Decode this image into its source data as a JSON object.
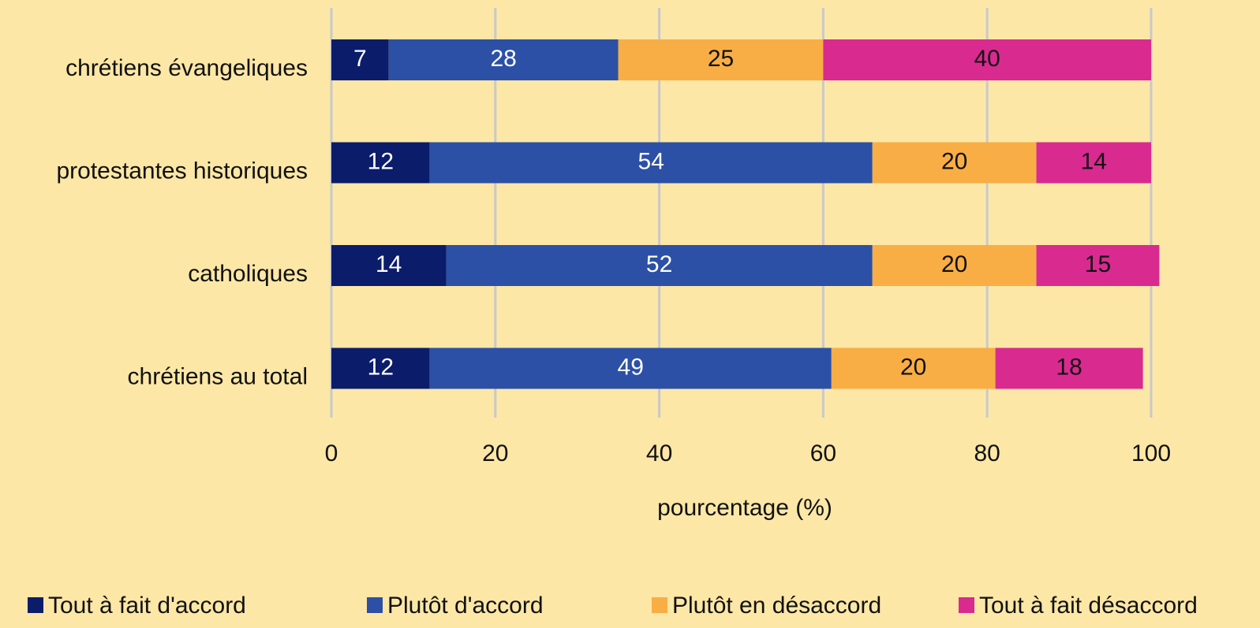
{
  "chart_data": {
    "type": "stacked-bar-horizontal",
    "categories": [
      "chrétiens évangeliques",
      "protestantes historiques",
      "catholiques",
      "chrétiens au total"
    ],
    "series": [
      {
        "name": "Tout à fait d'accord",
        "color": "#0b1c6b",
        "values": [
          7,
          12,
          14,
          12
        ]
      },
      {
        "name": "Plutôt d'accord",
        "color": "#2c50a6",
        "values": [
          28,
          54,
          52,
          49
        ]
      },
      {
        "name": "Plutôt en désaccord",
        "color": "#f8ae45",
        "values": [
          25,
          20,
          20,
          20
        ]
      },
      {
        "name": "Tout à fait désaccord",
        "color": "#d92a90",
        "values": [
          40,
          14,
          15,
          18
        ]
      }
    ],
    "xlabel": "pourcentage (%)",
    "xlim": [
      0,
      100
    ],
    "xticks": [
      0,
      20,
      40,
      60,
      80,
      100
    ],
    "grid": true
  }
}
